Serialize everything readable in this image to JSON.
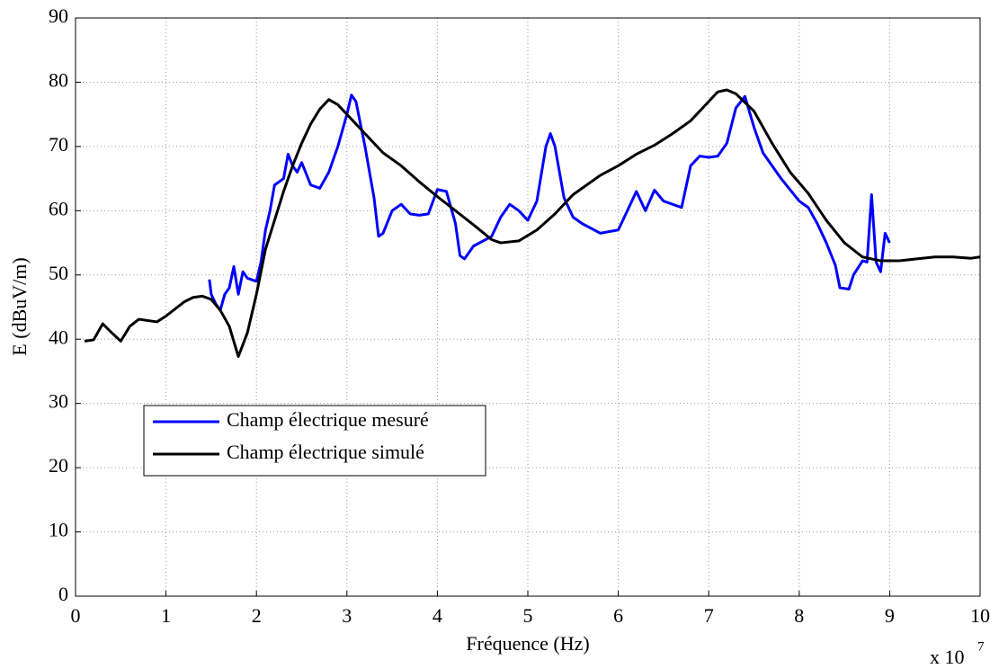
{
  "chart_data": {
    "type": "line",
    "xlabel": "Fréquence (Hz)",
    "ylabel": "E (dBuV/m)",
    "x_multiplier": "x 10",
    "x_multiplier_exponent": "7",
    "xlim": [
      0,
      10
    ],
    "ylim": [
      0,
      90
    ],
    "xticks": [
      0,
      1,
      2,
      3,
      4,
      5,
      6,
      7,
      8,
      9,
      10
    ],
    "yticks": [
      0,
      10,
      20,
      30,
      40,
      50,
      60,
      70,
      80,
      90
    ],
    "grid": true,
    "legend": "lower left",
    "series": [
      {
        "name": "Champ électrique mesuré",
        "color": "#0000ff",
        "x": [
          1.48,
          1.5,
          1.55,
          1.6,
          1.65,
          1.7,
          1.75,
          1.8,
          1.85,
          1.9,
          2.0,
          2.05,
          2.1,
          2.15,
          2.2,
          2.3,
          2.35,
          2.4,
          2.45,
          2.5,
          2.6,
          2.7,
          2.8,
          2.9,
          3.0,
          3.05,
          3.1,
          3.2,
          3.3,
          3.35,
          3.4,
          3.5,
          3.6,
          3.7,
          3.8,
          3.9,
          4.0,
          4.1,
          4.2,
          4.25,
          4.3,
          4.4,
          4.6,
          4.7,
          4.8,
          4.9,
          5.0,
          5.1,
          5.2,
          5.25,
          5.3,
          5.4,
          5.5,
          5.6,
          5.8,
          6.0,
          6.1,
          6.2,
          6.3,
          6.4,
          6.5,
          6.6,
          6.7,
          6.8,
          6.9,
          7.0,
          7.1,
          7.2,
          7.3,
          7.4,
          7.5,
          7.6,
          7.8,
          8.0,
          8.1,
          8.2,
          8.3,
          8.4,
          8.45,
          8.55,
          8.6,
          8.7,
          8.75,
          8.8,
          8.85,
          8.9,
          8.95,
          9.0
        ],
        "values": [
          49.3,
          47,
          45.5,
          44.5,
          47,
          48,
          51.3,
          47,
          50.5,
          49.5,
          49,
          52,
          57,
          60,
          64,
          65,
          68.8,
          67,
          66,
          67.5,
          64,
          63.5,
          66,
          70,
          75,
          78,
          77,
          70,
          62,
          56,
          56.5,
          60,
          61,
          59.5,
          59.3,
          59.5,
          63.3,
          63,
          58,
          53,
          52.5,
          54.5,
          56,
          59,
          61,
          60,
          58.5,
          61.5,
          70,
          72,
          70,
          62,
          59,
          58,
          56.5,
          57,
          60,
          63,
          60,
          63.2,
          61.5,
          61,
          60.5,
          67,
          68.5,
          68.3,
          68.5,
          70.5,
          76,
          77.8,
          73,
          69,
          65,
          61.5,
          60.5,
          58,
          55,
          51.5,
          48,
          47.8,
          50,
          52.2,
          52,
          62.5,
          52,
          50.5,
          56.5,
          55
        ]
      },
      {
        "name": "Champ électrique simulé",
        "color": "#000000",
        "x": [
          0.1,
          0.2,
          0.3,
          0.4,
          0.5,
          0.6,
          0.7,
          0.9,
          1.0,
          1.2,
          1.3,
          1.4,
          1.5,
          1.6,
          1.7,
          1.8,
          1.9,
          2.0,
          2.1,
          2.2,
          2.3,
          2.4,
          2.5,
          2.6,
          2.7,
          2.8,
          2.9,
          3.0,
          3.2,
          3.4,
          3.6,
          3.8,
          4.0,
          4.2,
          4.4,
          4.6,
          4.7,
          4.9,
          5.1,
          5.3,
          5.5,
          5.8,
          6.0,
          6.2,
          6.4,
          6.6,
          6.8,
          7.0,
          7.1,
          7.2,
          7.3,
          7.5,
          7.7,
          7.9,
          8.1,
          8.3,
          8.5,
          8.7,
          8.9,
          9.1,
          9.3,
          9.5,
          9.7,
          9.9,
          10.0
        ],
        "values": [
          39.7,
          39.9,
          42.4,
          41,
          39.7,
          42,
          43.1,
          42.7,
          43.6,
          45.8,
          46.5,
          46.7,
          46.2,
          44.5,
          42,
          37.3,
          41,
          47,
          54,
          58.5,
          63,
          67,
          70.5,
          73.5,
          75.8,
          77.3,
          76.5,
          75,
          72,
          69,
          67,
          64.5,
          62.2,
          60,
          57.8,
          55.5,
          55,
          55.3,
          57,
          59.5,
          62.5,
          65.5,
          67,
          68.8,
          70.2,
          72,
          74,
          77,
          78.5,
          78.8,
          78.2,
          75.5,
          70.5,
          66,
          62.7,
          58.5,
          55,
          52.8,
          52.2,
          52.2,
          52.5,
          52.8,
          52.8,
          52.6,
          52.8
        ]
      }
    ]
  }
}
